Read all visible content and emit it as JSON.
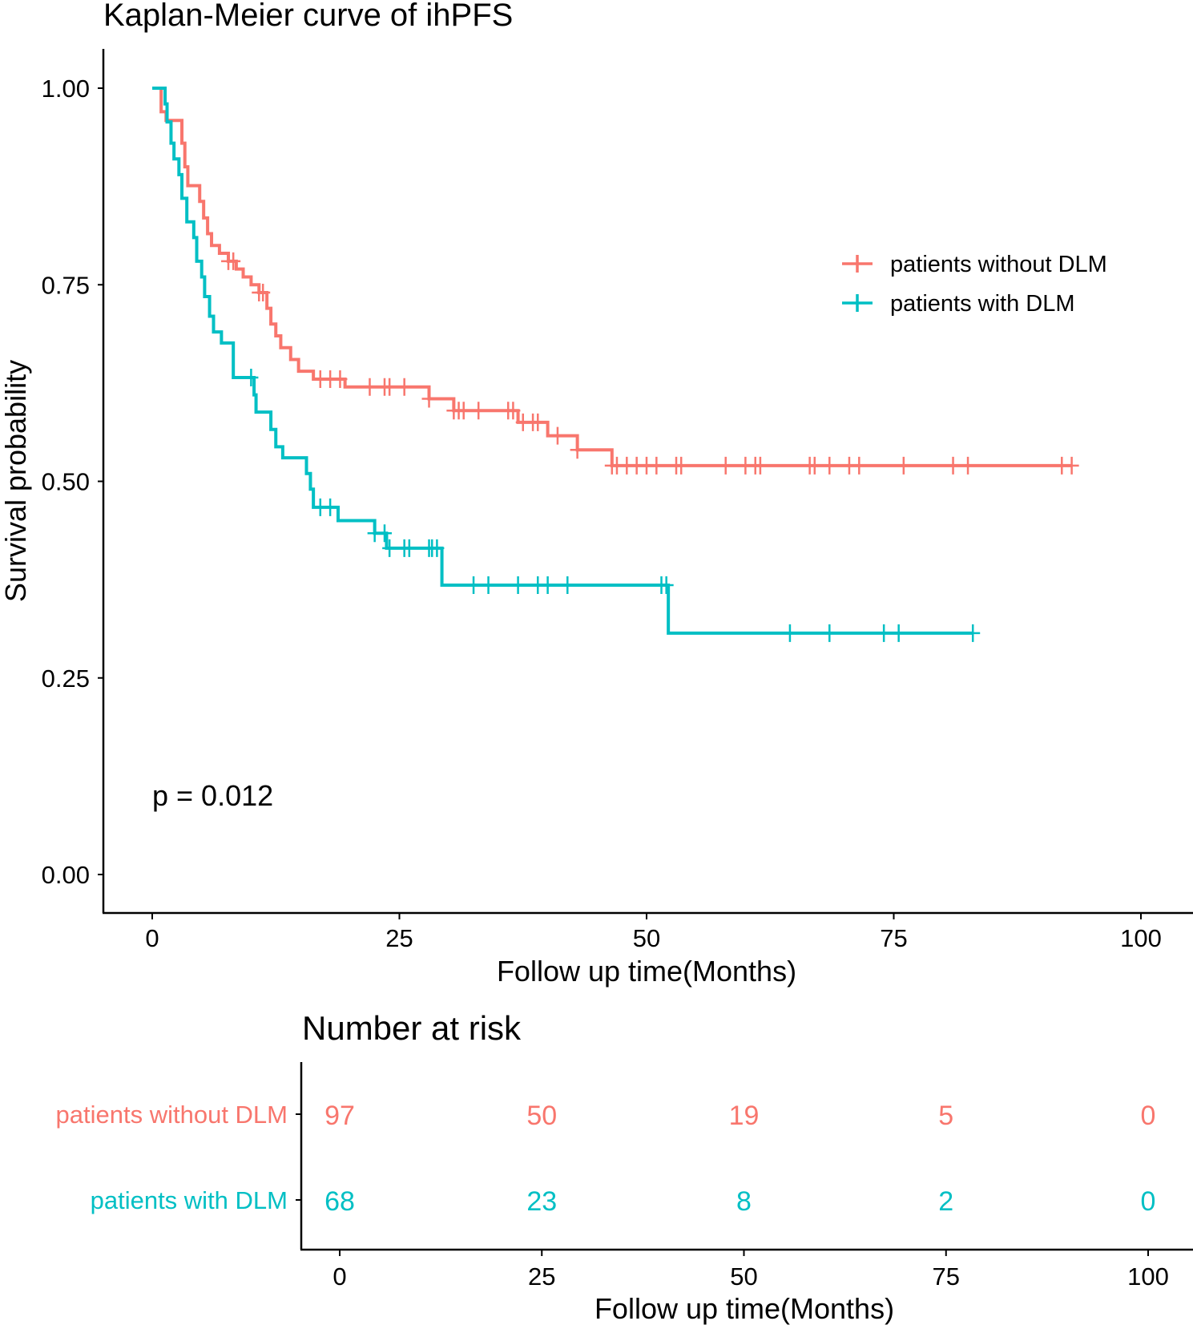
{
  "chart_data": {
    "type": "line",
    "subtype": "kaplan-meier step",
    "title": "Kaplan-Meier curve of ihPFS",
    "xlabel": "Follow up time(Months)",
    "ylabel": "Survival probability",
    "xlim": [
      0,
      100
    ],
    "ylim": [
      0,
      1
    ],
    "x_ticks": [
      "0",
      "25",
      "50",
      "75",
      "100"
    ],
    "y_ticks": [
      "0.00",
      "0.25",
      "0.50",
      "0.75",
      "1.00"
    ],
    "grid": false,
    "legend_position": "top-right",
    "annotation": "p = 0.012",
    "series": [
      {
        "name": "patients without DLM",
        "color": "#F8766D",
        "steps": [
          [
            0,
            1.0
          ],
          [
            0.9,
            0.97
          ],
          [
            1.4,
            0.959
          ],
          [
            3.0,
            0.93
          ],
          [
            3.3,
            0.9
          ],
          [
            3.6,
            0.876
          ],
          [
            4.8,
            0.856
          ],
          [
            5.2,
            0.835
          ],
          [
            5.6,
            0.815
          ],
          [
            6.0,
            0.8
          ],
          [
            6.8,
            0.79
          ],
          [
            7.7,
            0.78
          ],
          [
            8.5,
            0.77
          ],
          [
            9.2,
            0.76
          ],
          [
            10.0,
            0.75
          ],
          [
            10.8,
            0.74
          ],
          [
            11.6,
            0.72
          ],
          [
            12.0,
            0.7
          ],
          [
            12.5,
            0.685
          ],
          [
            13.0,
            0.67
          ],
          [
            14.0,
            0.655
          ],
          [
            14.8,
            0.64
          ],
          [
            16.3,
            0.63
          ],
          [
            19.5,
            0.62
          ],
          [
            28.0,
            0.605
          ],
          [
            30.5,
            0.59
          ],
          [
            37.0,
            0.575
          ],
          [
            40.0,
            0.558
          ],
          [
            43.0,
            0.54
          ],
          [
            46.5,
            0.52
          ]
        ],
        "end": 93,
        "censored": [
          7.7,
          8.2,
          10.8,
          11.2,
          17,
          18,
          19,
          22,
          23.5,
          24,
          25.5,
          28,
          30.5,
          31,
          31.5,
          33,
          36,
          36.5,
          37.5,
          38.5,
          39,
          41,
          43,
          46.5,
          47,
          48,
          49,
          50,
          51,
          53,
          53.5,
          58,
          60,
          61,
          61.5,
          66.5,
          67,
          68.5,
          70.5,
          71.5,
          76,
          81,
          82.5,
          92,
          93
        ]
      },
      {
        "name": "patients with DLM",
        "color": "#00BFC4",
        "steps": [
          [
            0,
            1.0
          ],
          [
            1.3,
            0.98
          ],
          [
            1.5,
            0.957
          ],
          [
            1.9,
            0.93
          ],
          [
            2.2,
            0.91
          ],
          [
            2.7,
            0.89
          ],
          [
            3.0,
            0.86
          ],
          [
            3.5,
            0.83
          ],
          [
            4.2,
            0.81
          ],
          [
            4.5,
            0.78
          ],
          [
            5.0,
            0.76
          ],
          [
            5.3,
            0.735
          ],
          [
            5.8,
            0.71
          ],
          [
            6.2,
            0.69
          ],
          [
            7.0,
            0.676
          ],
          [
            8.2,
            0.632
          ],
          [
            10.3,
            0.61
          ],
          [
            10.5,
            0.588
          ],
          [
            12.0,
            0.566
          ],
          [
            12.5,
            0.544
          ],
          [
            13.2,
            0.53
          ],
          [
            15.6,
            0.51
          ],
          [
            16.0,
            0.49
          ],
          [
            16.3,
            0.467
          ],
          [
            18.8,
            0.45
          ],
          [
            22.5,
            0.434
          ],
          [
            23.7,
            0.415
          ],
          [
            29.3,
            0.368
          ],
          [
            52.2,
            0.307
          ]
        ],
        "end": 83,
        "censored": [
          10,
          17,
          18,
          22.5,
          23.5,
          24,
          25.5,
          26,
          28,
          28.3,
          28.8,
          32.5,
          34,
          37,
          39,
          40,
          42,
          51.5,
          52,
          64.5,
          68.5,
          74,
          75.5,
          83
        ]
      }
    ]
  },
  "risk_table": {
    "title": "Number at risk",
    "xlabel": "Follow up time(Months)",
    "x_ticks": [
      "0",
      "25",
      "50",
      "75",
      "100"
    ],
    "rows": [
      {
        "label": "patients without DLM",
        "color": "#F8766D",
        "values": [
          "97",
          "50",
          "19",
          "5",
          "0"
        ]
      },
      {
        "label": "patients with DLM",
        "color": "#00BFC4",
        "values": [
          "68",
          "23",
          "8",
          "2",
          "0"
        ]
      }
    ]
  }
}
